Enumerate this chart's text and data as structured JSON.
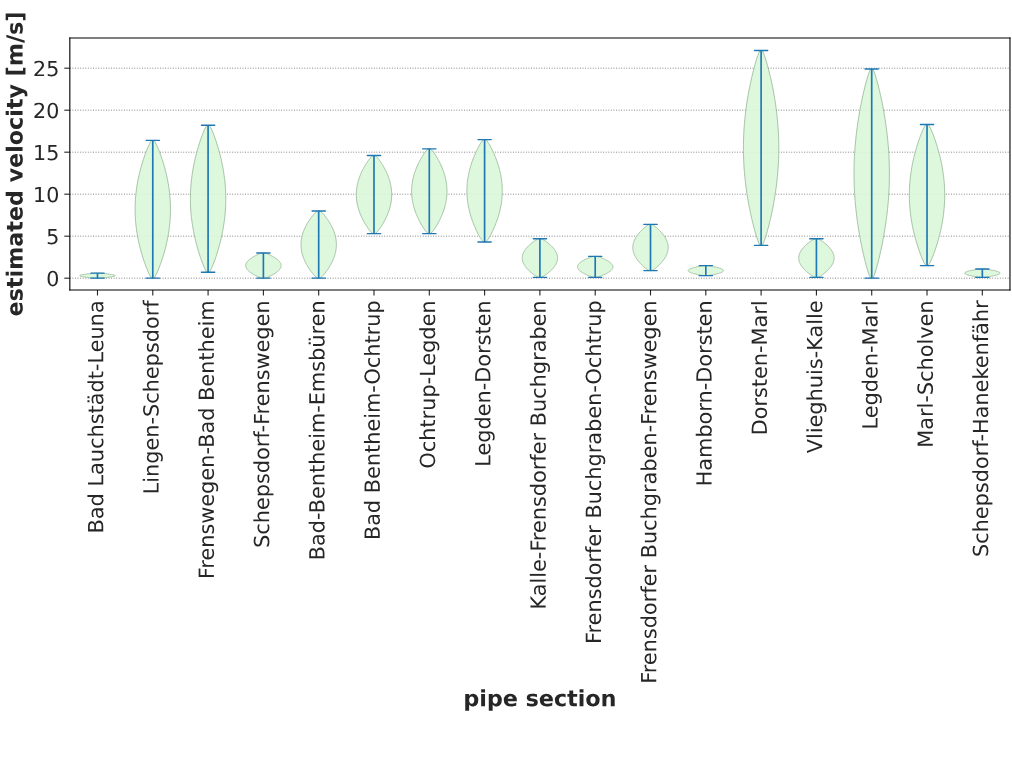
{
  "chart_data": {
    "type": "bar",
    "xlabel": "pipe section",
    "ylabel": "estimated velocity [m/s]",
    "categories": [
      "Bad Lauchstädt-Leuna",
      "Lingen-Schepsdorf",
      "Frenswegen-Bad Bentheim",
      "Schepsdorf-Frenswegen",
      "Bad-Bentheim-Emsbüren",
      "Bad Bentheim-Ochtrup",
      "Ochtrup-Legden",
      "Legden-Dorsten",
      "Kalle-Frensdorfer Buchgraben",
      "Frensdorfer Buchgraben-Ochtrup",
      "Frensdorfer Buchgraben-Frenswegen",
      "Hamborn-Dorsten",
      "Dorsten-Marl",
      "Vlieghuis-Kalle",
      "Legden-Marl",
      "Marl-Scholven",
      "Schepsdorf-Hanekenfähr"
    ],
    "base": [
      0,
      0,
      0.7,
      0,
      0,
      5.3,
      5.3,
      4.3,
      0.1,
      0.1,
      0.9,
      0.3,
      3.9,
      0.1,
      0,
      1.5,
      0.1
    ],
    "values": [
      0.6,
      16.4,
      17.5,
      3.0,
      8.0,
      9.3,
      10.1,
      12.2,
      4.6,
      2.5,
      5.5,
      1.2,
      23.2,
      4.6,
      24.9,
      16.8,
      1.0
    ],
    "color": "#1f77b4",
    "ylim": [
      -1.4,
      28.6
    ],
    "yticks": [
      0,
      5,
      10,
      15,
      20,
      25
    ],
    "grid": "y"
  }
}
